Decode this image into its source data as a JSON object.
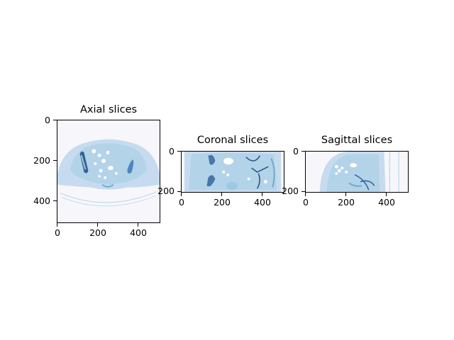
{
  "figure": {
    "panels": [
      {
        "id": "axial",
        "title": "Axial slices",
        "x_ticks": [
          "0",
          "200",
          "400"
        ],
        "y_ticks": [
          "0",
          "200",
          "400"
        ]
      },
      {
        "id": "coronal",
        "title": "Coronal slices",
        "x_ticks": [
          "0",
          "200",
          "400"
        ],
        "y_ticks": [
          "0",
          "200"
        ]
      },
      {
        "id": "sagittal",
        "title": "Sagittal slices",
        "x_ticks": [
          "0",
          "200",
          "400"
        ],
        "y_ticks": [
          "0",
          "200"
        ]
      }
    ],
    "colormap": "Blues",
    "colors": {
      "background": "#f7f7fb",
      "tissue_light": "#d6e7f3",
      "tissue_mid": "#b3d3e8",
      "organ": "#6ea8d2",
      "dark": "#1f4e85",
      "bone": "#ffffff"
    }
  }
}
